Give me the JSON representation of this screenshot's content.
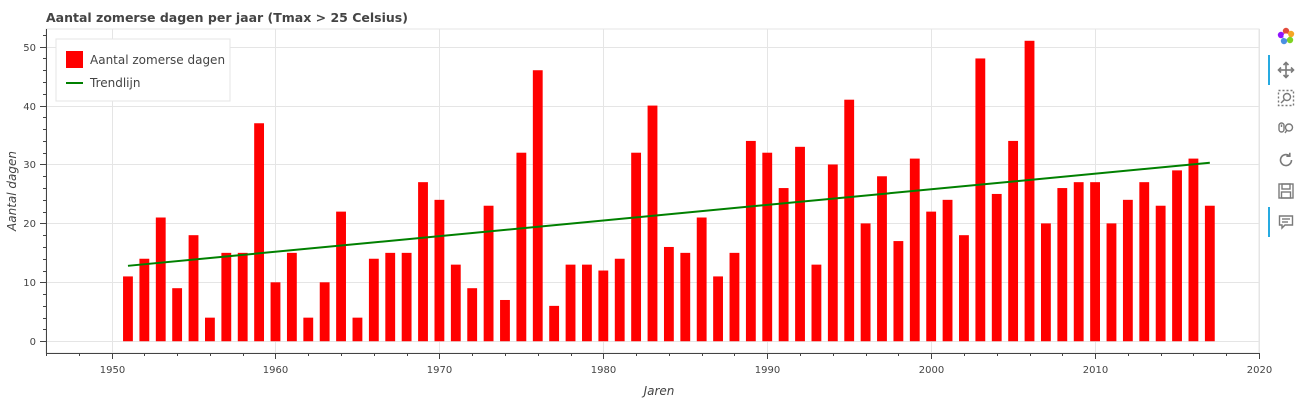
{
  "chart_data": {
    "type": "bar",
    "title": "Aantal zomerse dagen per jaar (Tmax > 25 Celsius)",
    "xlabel": "Jaren",
    "ylabel": "Aantal dagen",
    "xlim": [
      1946,
      2020
    ],
    "ylim": [
      -2,
      53
    ],
    "x_ticks": [
      1950,
      1960,
      1970,
      1980,
      1990,
      2000,
      2010,
      2020
    ],
    "y_ticks": [
      0,
      10,
      20,
      30,
      40,
      50
    ],
    "grid": true,
    "legend_position": "top-left",
    "categories": [
      1951,
      1952,
      1953,
      1954,
      1955,
      1956,
      1957,
      1958,
      1959,
      1960,
      1961,
      1962,
      1963,
      1964,
      1965,
      1966,
      1967,
      1968,
      1969,
      1970,
      1971,
      1972,
      1973,
      1974,
      1975,
      1976,
      1977,
      1978,
      1979,
      1980,
      1981,
      1982,
      1983,
      1984,
      1985,
      1986,
      1987,
      1988,
      1989,
      1990,
      1991,
      1992,
      1993,
      1994,
      1995,
      1996,
      1997,
      1998,
      1999,
      2000,
      2001,
      2002,
      2003,
      2004,
      2005,
      2006,
      2007,
      2008,
      2009,
      2010,
      2011,
      2012,
      2013,
      2014,
      2015,
      2016,
      2017
    ],
    "series": [
      {
        "name": "Aantal zomerse dagen",
        "kind": "bar",
        "color": "#ff0000",
        "values": [
          11,
          14,
          21,
          9,
          18,
          4,
          15,
          15,
          37,
          10,
          15,
          4,
          10,
          22,
          4,
          14,
          15,
          15,
          27,
          24,
          13,
          9,
          23,
          7,
          32,
          46,
          6,
          13,
          13,
          12,
          14,
          32,
          40,
          16,
          15,
          21,
          11,
          15,
          34,
          32,
          26,
          33,
          13,
          30,
          41,
          20,
          28,
          17,
          31,
          22,
          24,
          18,
          48,
          25,
          34,
          51,
          20,
          26,
          27,
          27,
          20,
          24,
          27,
          23,
          29,
          31,
          23
        ]
      },
      {
        "name": "Trendlijn",
        "kind": "line",
        "color": "#008000",
        "x": [
          1951,
          2017
        ],
        "values": [
          12.8,
          30.3
        ]
      }
    ]
  },
  "toolbar": {
    "icons": [
      "bokeh-logo-icon",
      "pan-icon",
      "box-zoom-icon",
      "wheel-zoom-icon",
      "reset-icon",
      "save-icon",
      "hover-icon"
    ]
  }
}
